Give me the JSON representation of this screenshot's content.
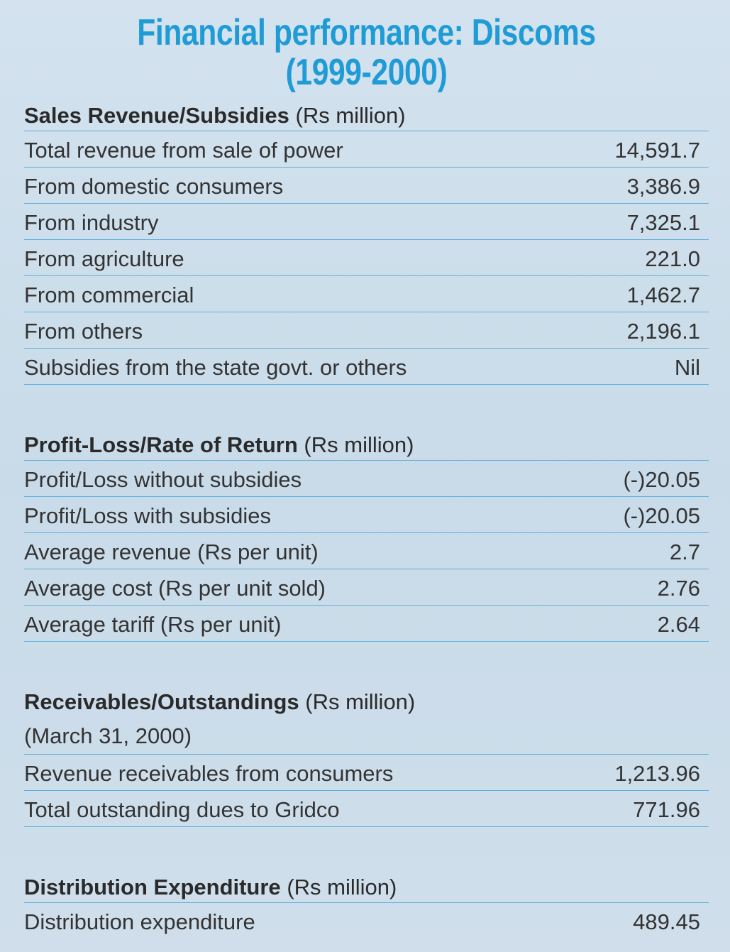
{
  "title_line1": "Financial performance: Discoms",
  "title_line2": "(1999-2000)",
  "sections": {
    "sales": {
      "header": "Sales Revenue/Subsidies",
      "unit": "(Rs million)",
      "rows": [
        {
          "label": "Total revenue from sale of power",
          "value": "14,591.7"
        },
        {
          "label": "From domestic consumers",
          "value": "3,386.9"
        },
        {
          "label": "From industry",
          "value": "7,325.1"
        },
        {
          "label": "From agriculture",
          "value": "221.0"
        },
        {
          "label": "From commercial",
          "value": "1,462.7"
        },
        {
          "label": "From others",
          "value": "2,196.1"
        },
        {
          "label": "Subsidies from the state govt. or others",
          "value": "Nil"
        }
      ]
    },
    "profit": {
      "header": "Profit-Loss/Rate of Return",
      "unit": "(Rs million)",
      "rows": [
        {
          "label": "Profit/Loss without subsidies",
          "value": "(-)20.05"
        },
        {
          "label": "Profit/Loss with subsidies",
          "value": "(-)20.05"
        },
        {
          "label": "Average revenue (Rs per unit)",
          "value": "2.7"
        },
        {
          "label": "Average cost (Rs per unit sold)",
          "value": "2.76"
        },
        {
          "label": "Average tariff (Rs per unit)",
          "value": "2.64"
        }
      ]
    },
    "receivables": {
      "header": "Receivables/Outstandings",
      "unit": "(Rs million)",
      "subheader": "(March 31, 2000)",
      "rows": [
        {
          "label": "Revenue receivables from consumers",
          "value": "1,213.96"
        },
        {
          "label": "Total outstanding dues to Gridco",
          "value": "771.96"
        }
      ]
    },
    "distribution": {
      "header": "Distribution Expenditure",
      "unit": "(Rs million)",
      "rows": [
        {
          "label": "Distribution expenditure",
          "value": "489.45"
        }
      ]
    }
  },
  "colors": {
    "title": "#1f9bd6",
    "rule": "#5fb0dc",
    "background": "#cbdcea"
  }
}
